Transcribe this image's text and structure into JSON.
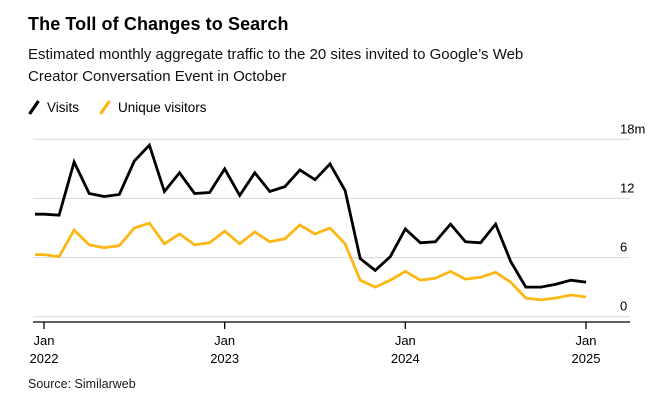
{
  "header": {
    "title": "The Toll of Changes to Search",
    "subtitle_line1": "Estimated monthly aggregate traffic to the 20 sites invited to Google’s Web",
    "subtitle_line2": "Creator Conversation Event in October"
  },
  "footer": {
    "source": "Source: Similarweb"
  },
  "colors": {
    "visits_line": "#000000",
    "unique_visitors_line": "#fcb714",
    "gridline": "#d8d8d8",
    "axis": "#000000",
    "background": "#ffffff"
  },
  "chart_data": {
    "type": "line",
    "title": "The Toll of Changes to Search",
    "unit": "millions of visits per month",
    "grid": "horizontal",
    "legend_position": "top-left",
    "y_axis_side": "right",
    "ylim": [
      0,
      18
    ],
    "yticks": [
      0,
      6,
      12,
      18
    ],
    "ytick_labels": [
      "0",
      "6",
      "12",
      "18m"
    ],
    "xticks": [
      {
        "index": 0,
        "line1": "Jan",
        "line2": "2022"
      },
      {
        "index": 12,
        "line1": "Jan",
        "line2": "2023"
      },
      {
        "index": 24,
        "line1": "Jan",
        "line2": "2024"
      },
      {
        "index": 36,
        "line1": "Jan",
        "line2": "2025"
      }
    ],
    "x": [
      "Jan 2022",
      "Feb 2022",
      "Mar 2022",
      "Apr 2022",
      "May 2022",
      "Jun 2022",
      "Jul 2022",
      "Aug 2022",
      "Sep 2022",
      "Oct 2022",
      "Nov 2022",
      "Dec 2022",
      "Jan 2023",
      "Feb 2023",
      "Mar 2023",
      "Apr 2023",
      "May 2023",
      "Jun 2023",
      "Jul 2023",
      "Aug 2023",
      "Sep 2023",
      "Oct 2023",
      "Nov 2023",
      "Dec 2023",
      "Jan 2024",
      "Feb 2024",
      "Mar 2024",
      "Apr 2024",
      "May 2024",
      "Jun 2024",
      "Jul 2024",
      "Aug 2024",
      "Sep 2024",
      "Oct 2024",
      "Nov 2024",
      "Dec 2024",
      "Jan 2025"
    ],
    "series": [
      {
        "name": "Visits",
        "color": "#000000",
        "values": [
          10.4,
          10.3,
          15.7,
          12.5,
          12.2,
          12.4,
          15.8,
          17.4,
          12.7,
          14.6,
          12.5,
          12.6,
          15.0,
          12.3,
          14.6,
          12.7,
          13.2,
          14.9,
          13.9,
          15.5,
          12.8,
          5.9,
          4.7,
          6.1,
          8.9,
          7.5,
          7.6,
          9.4,
          7.6,
          7.5,
          9.4,
          5.6,
          3.0,
          3.0,
          3.3,
          3.7,
          3.5
        ]
      },
      {
        "name": "Unique visitors",
        "color": "#fcb714",
        "values": [
          6.3,
          6.1,
          8.8,
          7.3,
          7.0,
          7.2,
          9.0,
          9.5,
          7.4,
          8.4,
          7.3,
          7.5,
          8.7,
          7.4,
          8.6,
          7.6,
          7.9,
          9.3,
          8.4,
          9.0,
          7.4,
          3.7,
          3.0,
          3.7,
          4.6,
          3.7,
          3.9,
          4.6,
          3.8,
          4.0,
          4.5,
          3.5,
          1.9,
          1.7,
          1.9,
          2.2,
          2.0
        ]
      }
    ]
  }
}
